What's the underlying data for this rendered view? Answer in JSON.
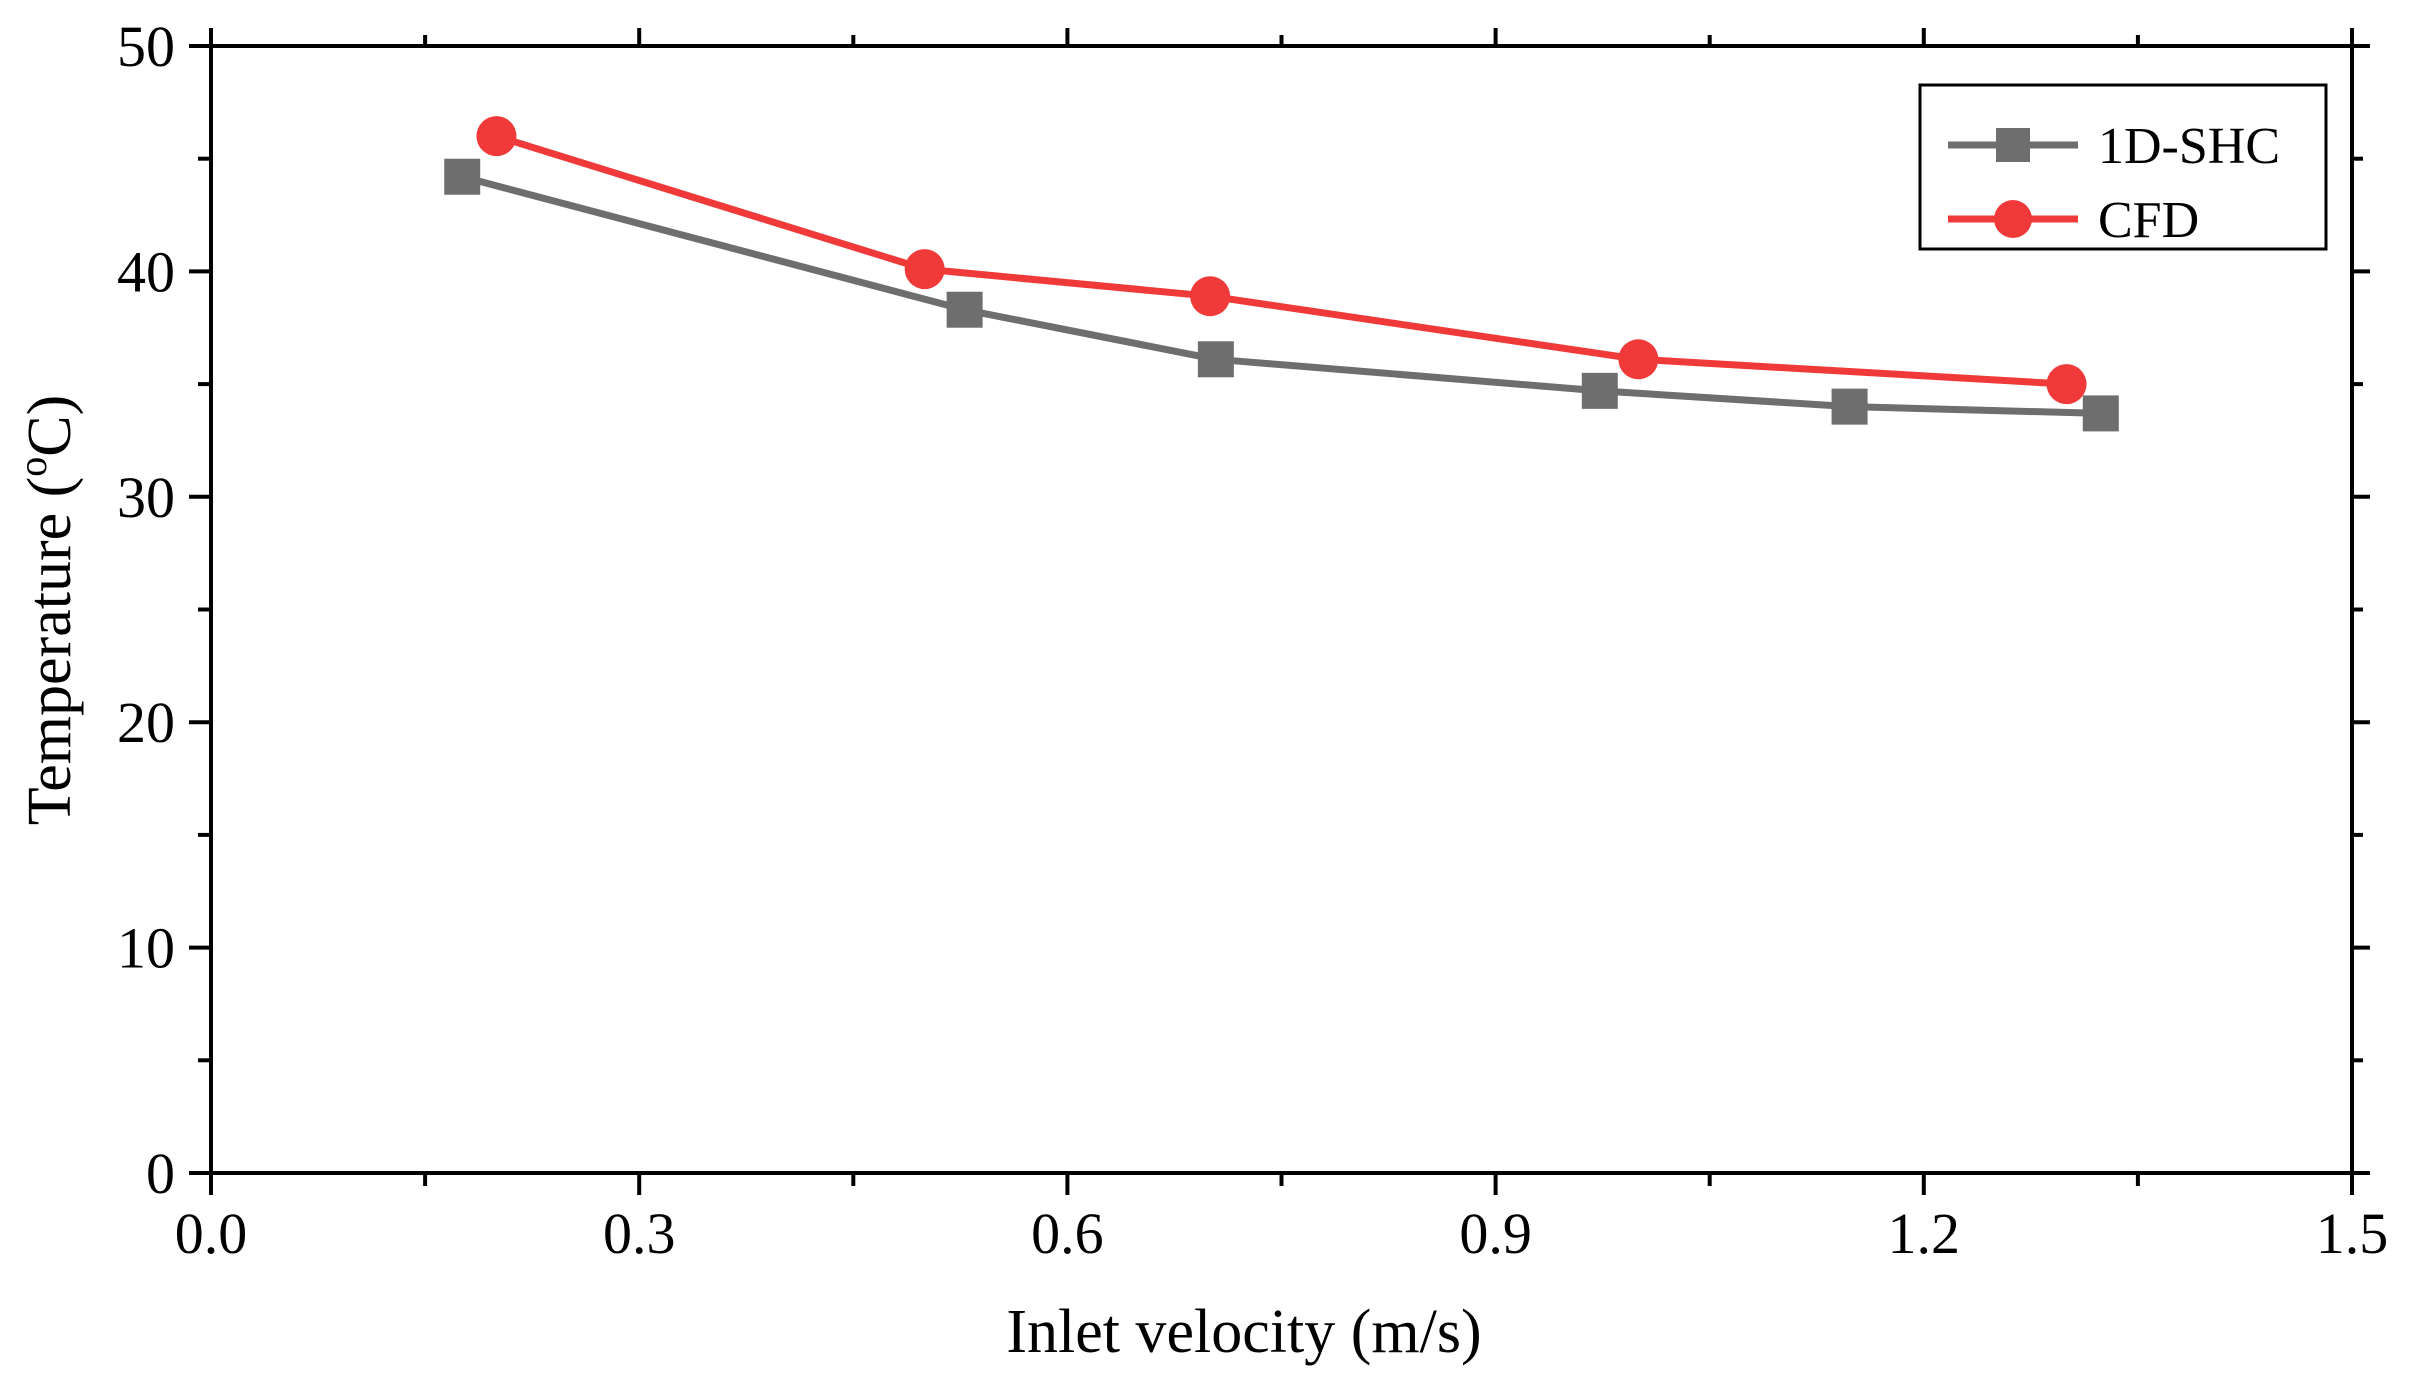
{
  "chart_data": {
    "type": "line",
    "xlabel": "Inlet velocity (m/s)",
    "ylabel_main": "Temperature (",
    "ylabel_sup": "o",
    "ylabel_tail": "C)",
    "xlim": [
      0.0,
      1.5
    ],
    "ylim": [
      0,
      50
    ],
    "x_ticks": [
      0.0,
      0.3,
      0.6,
      0.9,
      1.2,
      1.5
    ],
    "x_tick_labels": [
      "0.0",
      "0.3",
      "0.6",
      "0.9",
      "1.2",
      "1.5"
    ],
    "y_ticks": [
      0,
      10,
      20,
      30,
      40,
      50
    ],
    "y_tick_labels": [
      "0",
      "10",
      "20",
      "30",
      "40",
      "50"
    ],
    "grid": false,
    "legend_position": "top-right",
    "series": [
      {
        "name": "1D-SHC",
        "color": "#6e6e6e",
        "marker": "square",
        "x": [
          0.176,
          0.528,
          0.704,
          0.973,
          1.148,
          1.324
        ],
        "y": [
          44.2,
          38.3,
          36.1,
          34.7,
          34.0,
          33.7
        ]
      },
      {
        "name": "CFD",
        "color": "#f03a3a",
        "marker": "circle",
        "x": [
          0.2,
          0.5,
          0.7,
          1.0,
          1.3
        ],
        "y": [
          46.0,
          40.1,
          38.9,
          36.1,
          35.0
        ]
      }
    ]
  }
}
